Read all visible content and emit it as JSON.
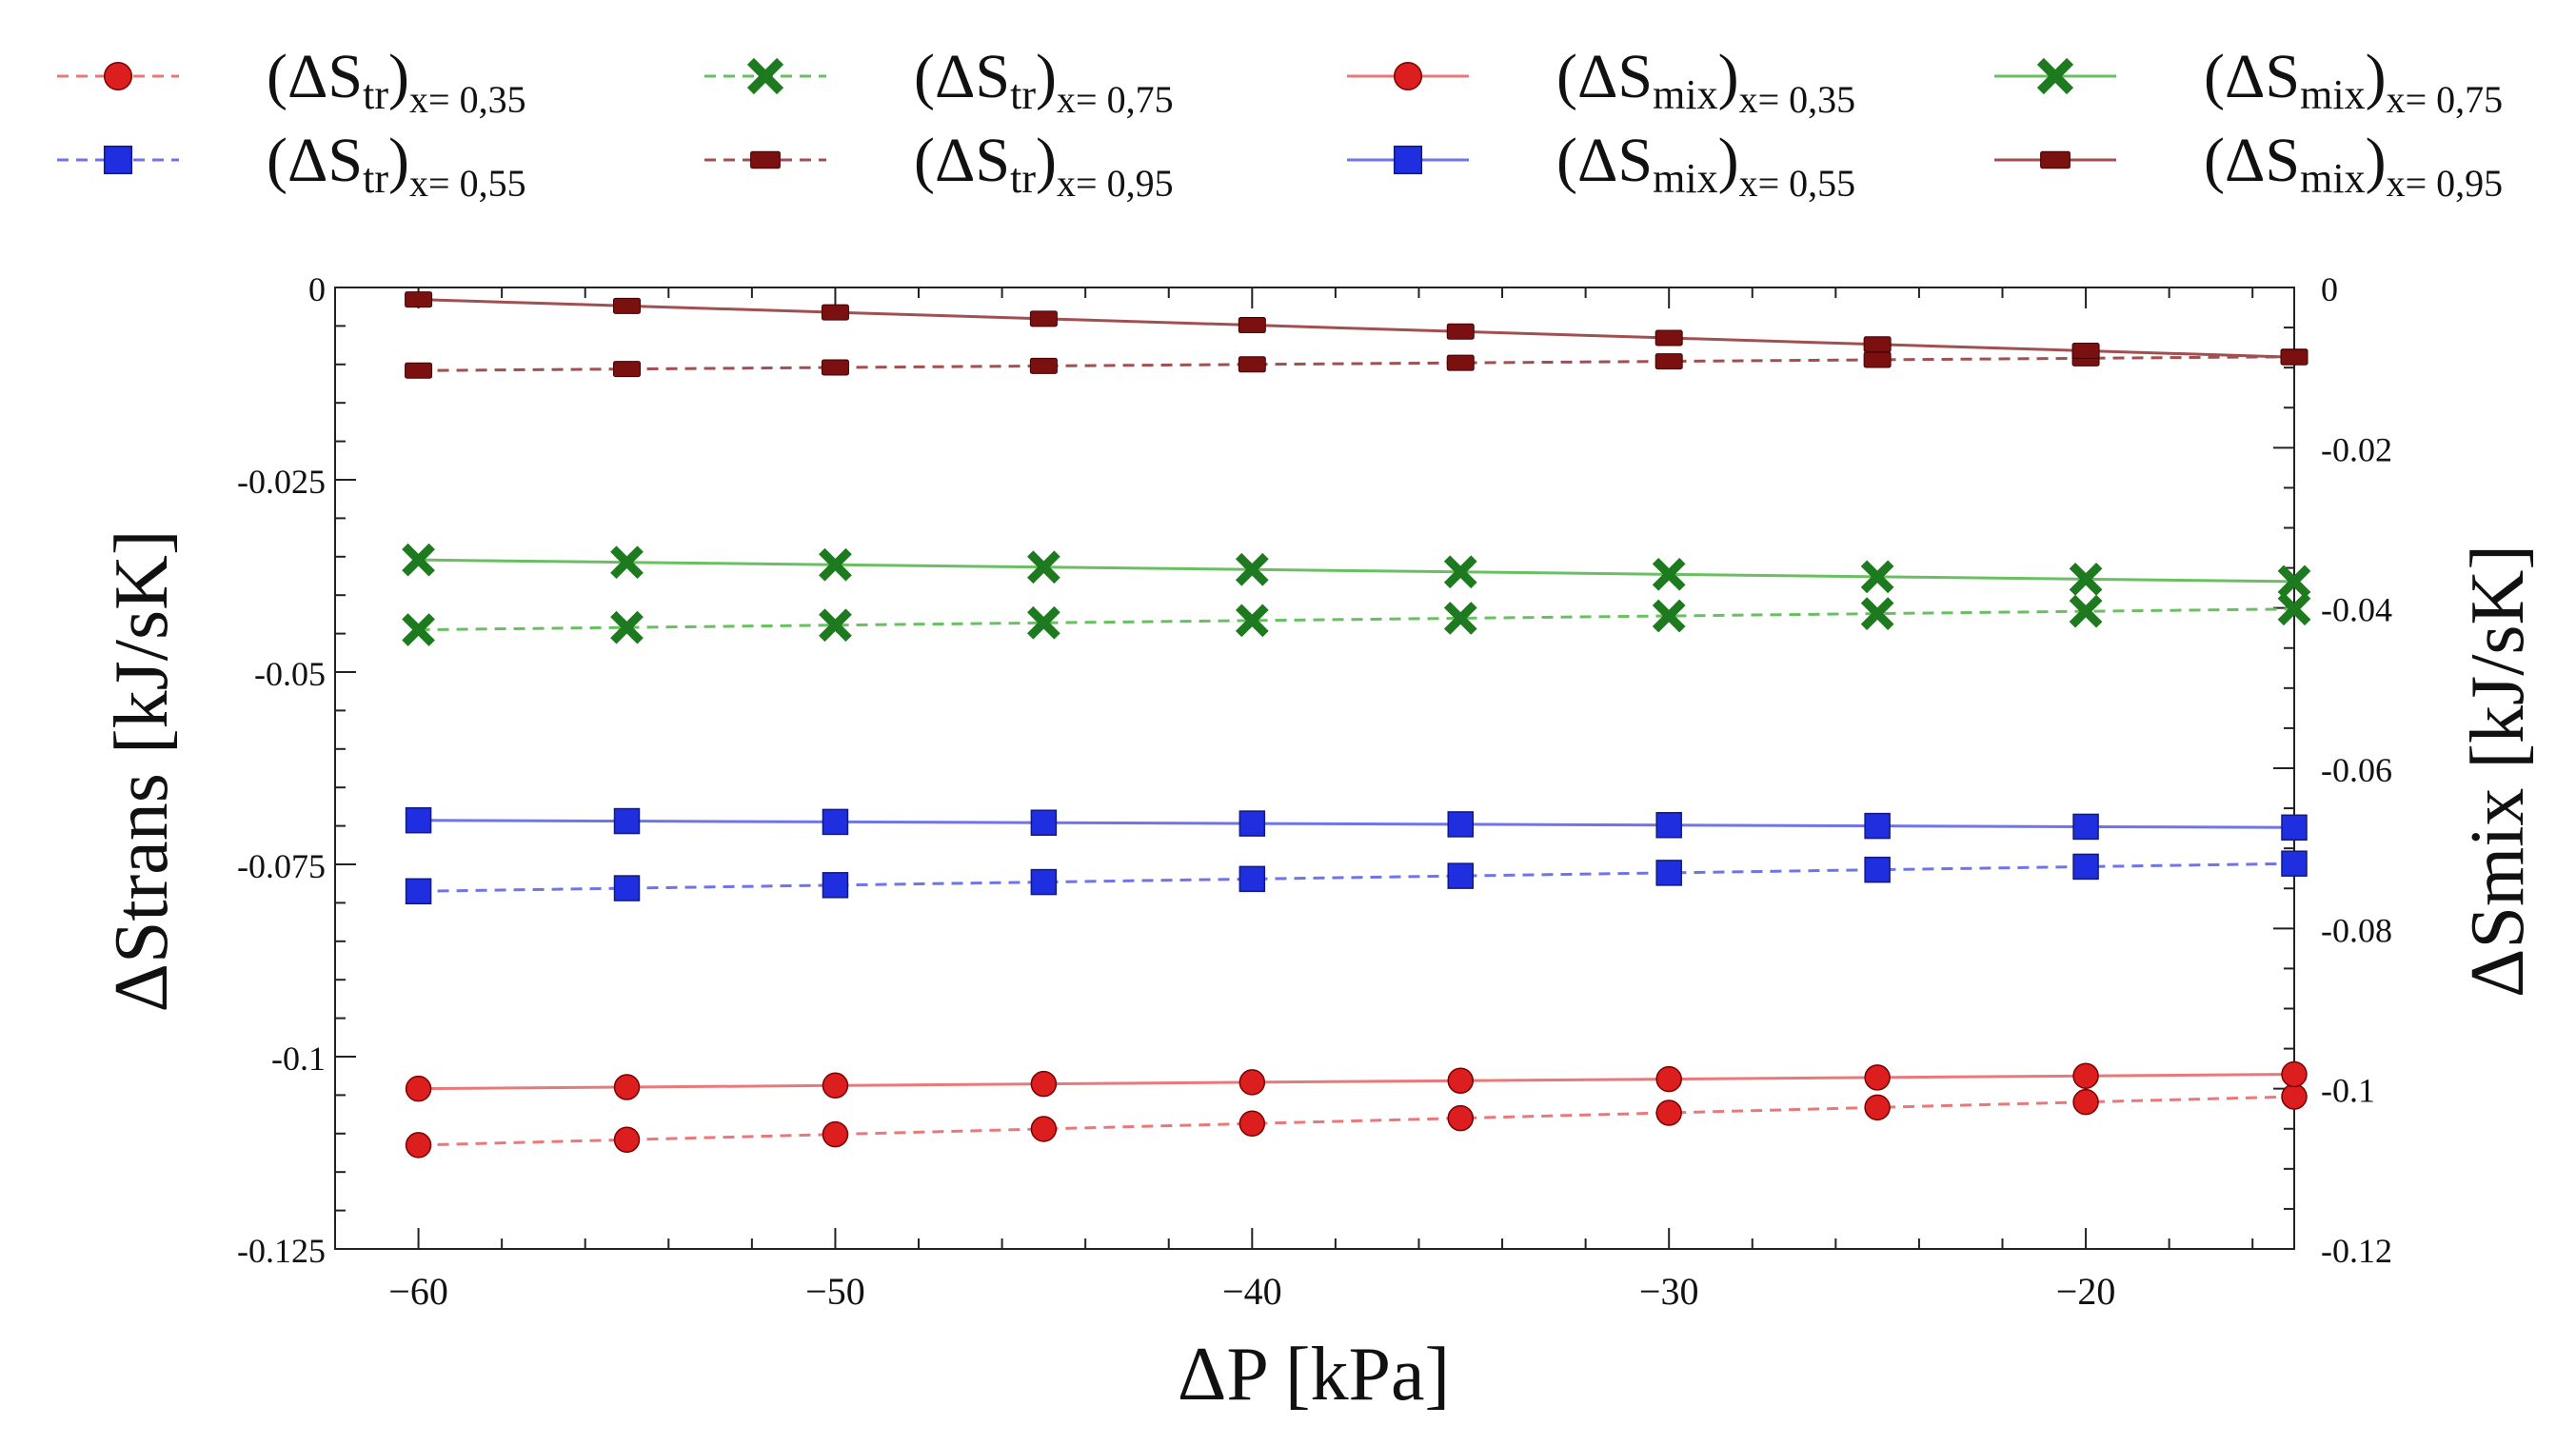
{
  "chart_data": {
    "type": "line",
    "x_axis": {
      "label": "ΔP [kPa]",
      "range": [
        -62,
        -15
      ],
      "ticks": [
        -60,
        -50,
        -40,
        -30,
        -20
      ],
      "tick_labels": [
        "−60",
        "−50",
        "−40",
        "−30",
        "−20"
      ]
    },
    "y_left": {
      "label": "ΔStrans [kJ/sK]",
      "range": [
        -0.125,
        0
      ],
      "ticks": [
        0,
        -0.025,
        -0.05,
        -0.075,
        -0.1,
        -0.125
      ],
      "tick_labels": [
        "0",
        "-0.025",
        "-0.05",
        "-0.075",
        "-0.1",
        "-0.125"
      ]
    },
    "y_right": {
      "label": "ΔSmix [kJ/sK]",
      "range": [
        -0.12,
        0
      ],
      "ticks": [
        0,
        -0.02,
        -0.04,
        -0.06,
        -0.08,
        -0.1,
        -0.12
      ],
      "tick_labels": [
        "0",
        "-0.02",
        "-0.04",
        "-0.06",
        "-0.08",
        "-0.1",
        "-0.12"
      ]
    },
    "x": [
      -60,
      -55,
      -50,
      -45,
      -40,
      -35,
      -30,
      -25,
      -20,
      -15
    ],
    "series": [
      {
        "name": "(ΔStr)x= 0,35",
        "main": "(ΔS",
        "sub1": "tr",
        "close": ")",
        "sub2": "x= 0,35",
        "axis": "left",
        "style": "dashed",
        "color": "#e8787a",
        "marker": "circle",
        "markerColor": "#dd1e1e",
        "values": [
          -0.1115,
          -0.1108,
          -0.1101,
          -0.1094,
          -0.1087,
          -0.108,
          -0.1073,
          -0.1066,
          -0.1059,
          -0.1052
        ]
      },
      {
        "name": "(ΔStr)x= 0,55",
        "main": "(ΔS",
        "sub1": "tr",
        "close": ")",
        "sub2": "x= 0,55",
        "axis": "left",
        "style": "dashed",
        "color": "#6f74e6",
        "marker": "square",
        "markerColor": "#1f2fe0",
        "values": [
          -0.0785,
          -0.0781,
          -0.0777,
          -0.0773,
          -0.0769,
          -0.0765,
          -0.0761,
          -0.0757,
          -0.0753,
          -0.0749
        ]
      },
      {
        "name": "(ΔStr)x= 0,75",
        "main": "(ΔS",
        "sub1": "tr",
        "close": ")",
        "sub2": "x= 0,75",
        "axis": "left",
        "style": "dashed",
        "color": "#6abf62",
        "marker": "x",
        "markerColor": "#1e7a1e",
        "values": [
          -0.0445,
          -0.0442,
          -0.0439,
          -0.0436,
          -0.0433,
          -0.043,
          -0.0427,
          -0.0424,
          -0.0421,
          -0.0418
        ]
      },
      {
        "name": "(ΔStr)x= 0,95",
        "main": "(ΔS",
        "sub1": "tr",
        "close": ")",
        "sub2": "x= 0,95",
        "axis": "left",
        "style": "dashed",
        "color": "#a05050",
        "marker": "bar",
        "markerColor": "#7a1010",
        "values": [
          -0.0108,
          -0.0106,
          -0.0104,
          -0.0102,
          -0.01,
          -0.0098,
          -0.0096,
          -0.0094,
          -0.0092,
          -0.009
        ]
      },
      {
        "name": "(ΔSmix)x= 0,35",
        "main": "(ΔS",
        "sub1": "mix",
        "close": ")",
        "sub2": "x= 0,35",
        "axis": "right",
        "style": "solid",
        "color": "#e8787a",
        "marker": "circle",
        "markerColor": "#dd1e1e",
        "values": [
          -0.1,
          -0.0998,
          -0.0996,
          -0.0994,
          -0.0992,
          -0.099,
          -0.0988,
          -0.0986,
          -0.0984,
          -0.0982
        ]
      },
      {
        "name": "(ΔSmix)x= 0,55",
        "main": "(ΔS",
        "sub1": "mix",
        "close": ")",
        "sub2": "x= 0,55",
        "axis": "right",
        "style": "solid",
        "color": "#6f74e6",
        "marker": "square",
        "markerColor": "#1f2fe0",
        "values": [
          -0.0665,
          -0.0666,
          -0.0667,
          -0.0668,
          -0.0669,
          -0.067,
          -0.0671,
          -0.0672,
          -0.0673,
          -0.0674
        ]
      },
      {
        "name": "(ΔSmix)x= 0,75",
        "main": "(ΔS",
        "sub1": "mix",
        "close": ")",
        "sub2": "x= 0,75",
        "axis": "right",
        "style": "solid",
        "color": "#6abf62",
        "marker": "x",
        "markerColor": "#1e7a1e",
        "values": [
          -0.034,
          -0.0343,
          -0.0346,
          -0.0349,
          -0.0352,
          -0.0355,
          -0.0358,
          -0.0361,
          -0.0364,
          -0.0367
        ]
      },
      {
        "name": "(ΔSmix)x= 0,95",
        "main": "(ΔS",
        "sub1": "mix",
        "close": ")",
        "sub2": "x= 0,95",
        "axis": "right",
        "style": "solid",
        "color": "#a05050",
        "marker": "bar",
        "markerColor": "#7a1010",
        "values": [
          -0.0015,
          -0.0023,
          -0.0031,
          -0.0039,
          -0.0047,
          -0.0055,
          -0.0063,
          -0.0071,
          -0.0079,
          -0.0087
        ]
      }
    ],
    "legend_position": "top",
    "grid": false
  }
}
